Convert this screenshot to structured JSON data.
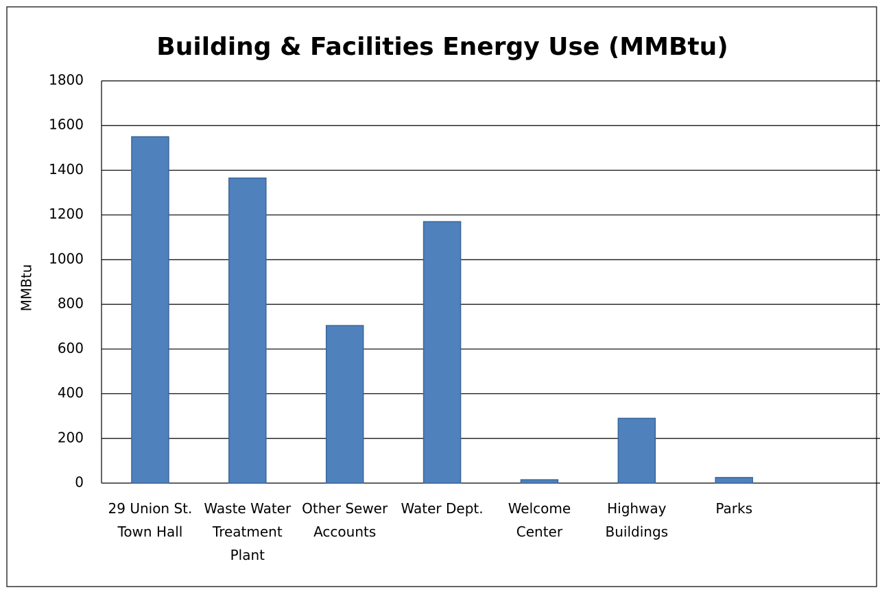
{
  "chart_data": {
    "type": "bar",
    "title": "Building & Facilities Energy Use (MMBtu)",
    "y_label": "MMBtu",
    "categories": [
      "29 Union St. Town Hall",
      "Waste Water Treatment Plant",
      "Other Sewer Accounts",
      "Water Dept.",
      "Welcome Center",
      "Highway Buildings",
      "Parks",
      null
    ],
    "values": [
      1550,
      1365,
      705,
      1170,
      15,
      290,
      25,
      null
    ],
    "color": "#4f81bd",
    "ylim": [
      0,
      1800
    ],
    "yticks": [
      0,
      200,
      400,
      600,
      800,
      1000,
      1200,
      1400,
      1600,
      1800
    ],
    "grid": true
  }
}
